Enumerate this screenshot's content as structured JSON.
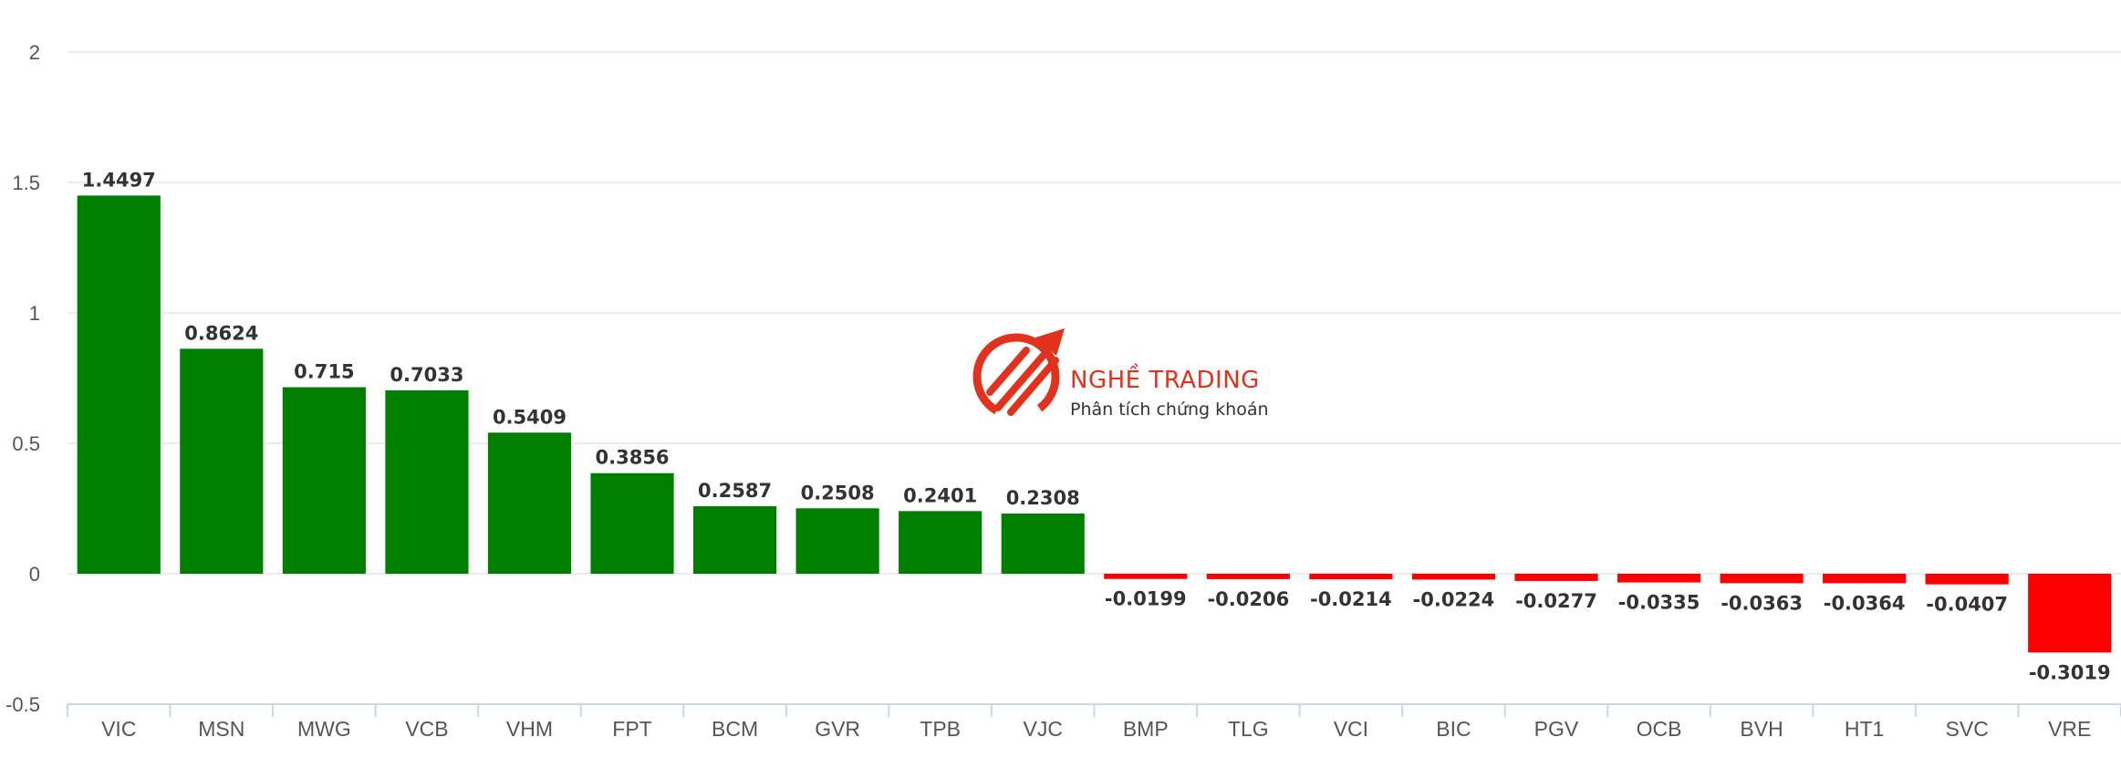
{
  "chart_data": {
    "type": "bar",
    "title": "",
    "xlabel": "",
    "ylabel": "",
    "ylim": [
      -0.5,
      2
    ],
    "yticks": [
      "-0.5",
      "0",
      "0.5",
      "1",
      "1.5",
      "2"
    ],
    "grid": true,
    "categories": [
      "VIC",
      "MSN",
      "MWG",
      "VCB",
      "VHM",
      "FPT",
      "BCM",
      "GVR",
      "TPB",
      "VJC",
      "BMP",
      "TLG",
      "VCI",
      "BIC",
      "PGV",
      "OCB",
      "BVH",
      "HT1",
      "SVC",
      "VRE"
    ],
    "values": [
      1.4497,
      0.8624,
      0.715,
      0.7033,
      0.5409,
      0.3856,
      0.2587,
      0.2508,
      0.2401,
      0.2308,
      -0.0199,
      -0.0206,
      -0.0214,
      -0.0224,
      -0.0277,
      -0.0335,
      -0.0363,
      -0.0364,
      -0.0407,
      -0.3019
    ],
    "data_labels": [
      "1.4497",
      "0.8624",
      "0.715",
      "0.7033",
      "0.5409",
      "0.3856",
      "0.2587",
      "0.2508",
      "0.2401",
      "0.2308",
      "-0.0199",
      "-0.0206",
      "-0.0214",
      "-0.0224",
      "-0.0277",
      "-0.0335",
      "-0.0363",
      "-0.0364",
      "-0.0407",
      "-0.3019"
    ],
    "colors": {
      "positive": "#008000",
      "negative": "#ff0000",
      "grid": "#e6e6e6",
      "axis": "#ccd6eb"
    }
  },
  "watermark": {
    "title": "NGHỀ TRADING",
    "subtitle": "Phân tích chứng khoán",
    "icon": "trading-logo-icon",
    "color": "#e0321c"
  }
}
